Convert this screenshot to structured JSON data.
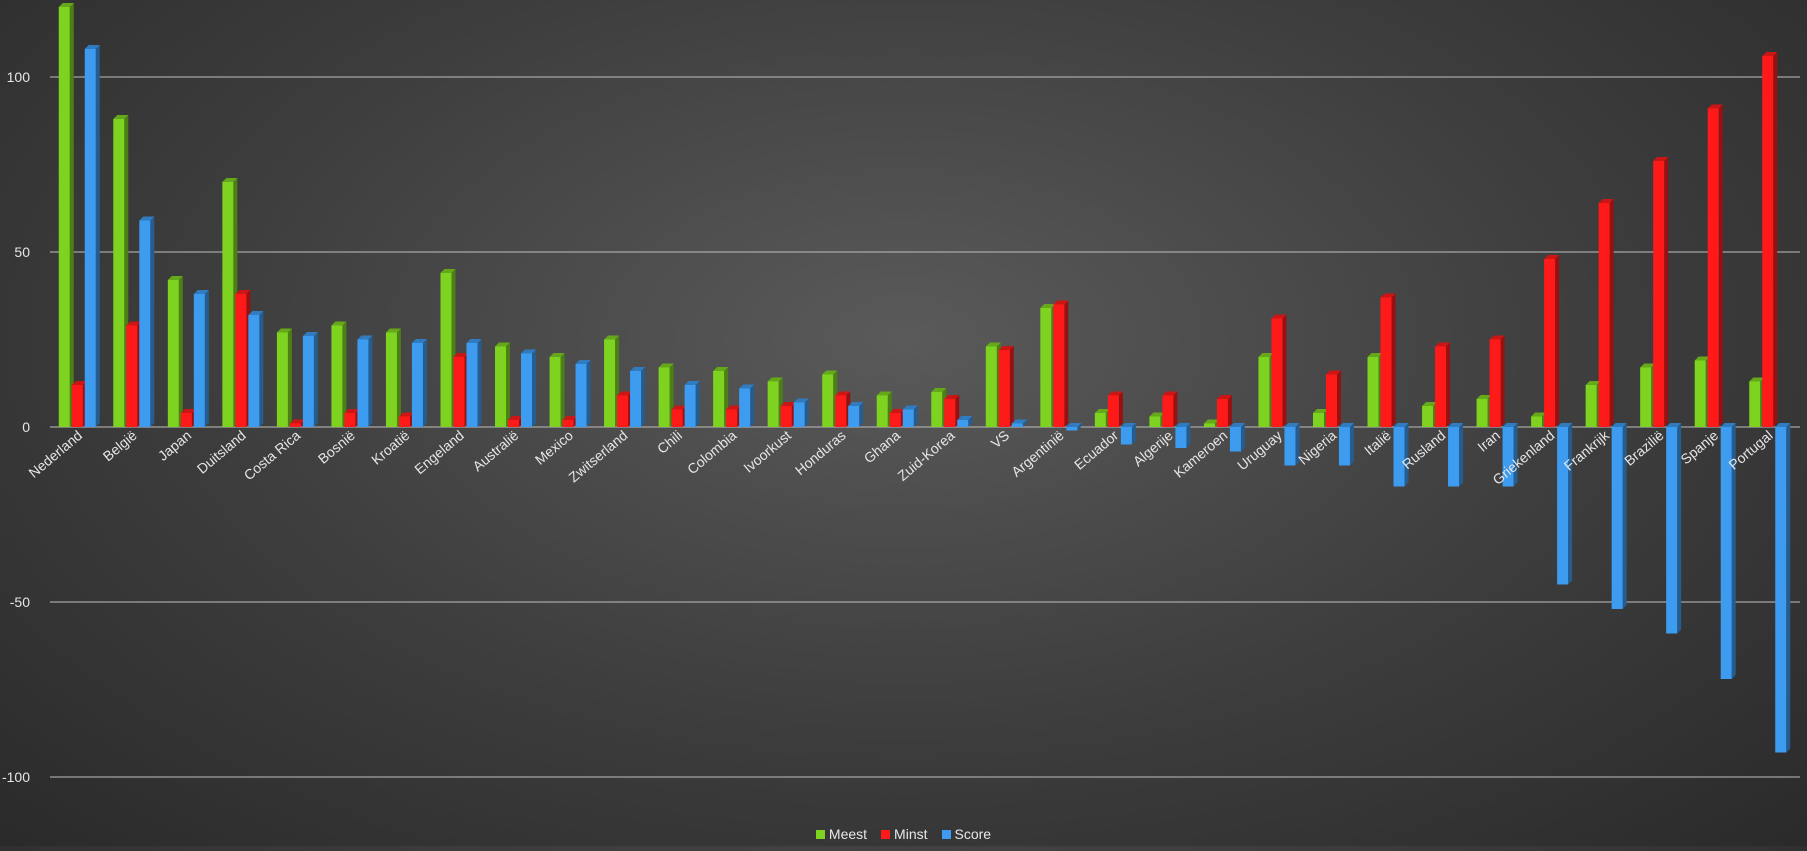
{
  "chart_data": {
    "type": "bar",
    "categories": [
      "Nederland",
      "België",
      "Japan",
      "Duitsland",
      "Costa Rica",
      "Bosnië",
      "Kroatië",
      "Engeland",
      "Australië",
      "Mexico",
      "Zwitserland",
      "Chili",
      "Colombia",
      "Ivoorkust",
      "Honduras",
      "Ghana",
      "Zuid-Korea",
      "VS",
      "Argentinië",
      "Ecuador",
      "Algerije",
      "Kameroen",
      "Uruguay",
      "Nigeria",
      "Italië",
      "Rusland",
      "Iran",
      "Griekenland",
      "Frankrijk",
      "Brazilië",
      "Spanje",
      "Portugal"
    ],
    "series": [
      {
        "name": "Meest",
        "color": "#7ed321",
        "values": [
          120,
          88,
          42,
          70,
          27,
          29,
          27,
          44,
          23,
          20,
          25,
          17,
          16,
          13,
          15,
          9,
          10,
          23,
          34,
          4,
          3,
          1,
          20,
          4,
          20,
          6,
          8,
          3,
          12,
          17,
          19,
          13
        ]
      },
      {
        "name": "Minst",
        "color": "#ff1a1a",
        "values": [
          12,
          29,
          4,
          38,
          1,
          4,
          3,
          20,
          2,
          2,
          9,
          5,
          5,
          6,
          9,
          4,
          8,
          22,
          35,
          9,
          9,
          8,
          31,
          15,
          37,
          23,
          25,
          48,
          64,
          76,
          91,
          106
        ]
      },
      {
        "name": "Score",
        "color": "#3d9bf0",
        "values": [
          108,
          59,
          38,
          32,
          26,
          25,
          24,
          24,
          21,
          18,
          16,
          12,
          11,
          7,
          6,
          5,
          2,
          1,
          -1,
          -5,
          -6,
          -7,
          -11,
          -11,
          -17,
          -17,
          -17,
          -45,
          -52,
          -59,
          -72,
          -93
        ]
      }
    ],
    "ylim": [
      -100,
      120
    ],
    "yticks": [
      {
        "value": 100,
        "label": "100"
      },
      {
        "value": 50,
        "label": "50"
      },
      {
        "value": 0,
        "label": "0"
      },
      {
        "value": -50,
        "label": "-50"
      },
      {
        "value": -100,
        "label": "-100"
      }
    ],
    "grid": true,
    "legend_position": "bottom"
  }
}
